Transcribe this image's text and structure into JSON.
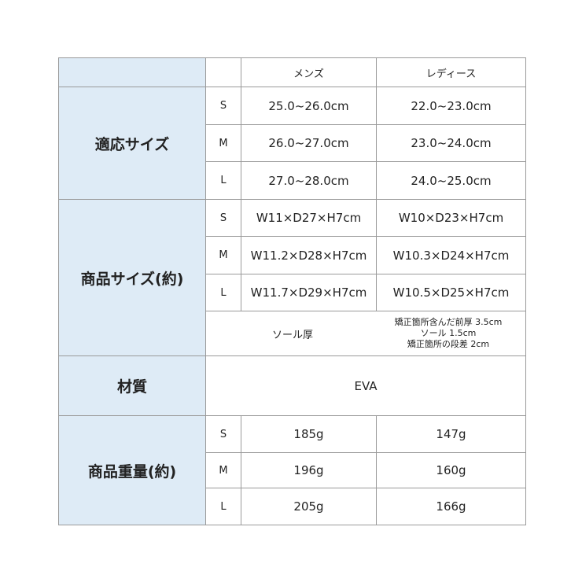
{
  "columns": {
    "mens": "メンズ",
    "ladies": "レディース"
  },
  "fit_size": {
    "label": "適応サイズ",
    "rows": [
      {
        "size": "S",
        "mens": "25.0~26.0cm",
        "ladies": "22.0~23.0cm"
      },
      {
        "size": "M",
        "mens": "26.0~27.0cm",
        "ladies": "23.0~24.0cm"
      },
      {
        "size": "L",
        "mens": "27.0~28.0cm",
        "ladies": "24.0~25.0cm"
      }
    ]
  },
  "product_size": {
    "label": "商品サイズ(約)",
    "rows": [
      {
        "size": "S",
        "mens": "W11×D27×H7cm",
        "ladies": "W10×D23×H7cm"
      },
      {
        "size": "M",
        "mens": "W11.2×D28×H7cm",
        "ladies": "W10.3×D24×H7cm"
      },
      {
        "size": "L",
        "mens": "W11.7×D29×H7cm",
        "ladies": "W10.5×D25×H7cm"
      }
    ],
    "sole": {
      "label": "ソール厚",
      "lines": [
        "矯正箇所含んだ前厚 3.5cm",
        "ソール 1.5cm",
        "矯正箇所の段差 2cm"
      ]
    }
  },
  "material": {
    "label": "材質",
    "value": "EVA"
  },
  "weight": {
    "label": "商品重量(約)",
    "rows": [
      {
        "size": "S",
        "mens": "185g",
        "ladies": "147g"
      },
      {
        "size": "M",
        "mens": "196g",
        "ladies": "160g"
      },
      {
        "size": "L",
        "mens": "205g",
        "ladies": "166g"
      }
    ]
  },
  "colors": {
    "header_bg": "#deebf6",
    "border": "#9a9a9a"
  }
}
